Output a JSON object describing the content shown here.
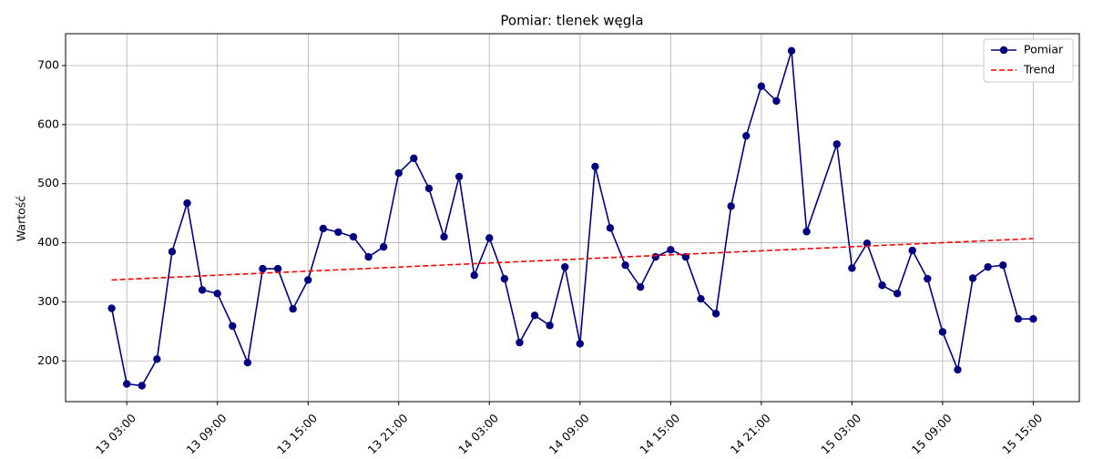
{
  "chart_data": {
    "type": "line",
    "title": "Pomiar: tlenek węgla",
    "ylabel": "Wartość",
    "xlim": [
      "12 22:57",
      "15 18:03"
    ],
    "xticks": [
      "13 03:00",
      "13 09:00",
      "13 15:00",
      "13 21:00",
      "14 03:00",
      "14 09:00",
      "14 15:00",
      "14 21:00",
      "15 03:00",
      "15 09:00",
      "15 15:00"
    ],
    "ylim": [
      131,
      754
    ],
    "yticks": [
      200,
      300,
      400,
      500,
      600,
      700
    ],
    "grid": true,
    "legend": "upper right",
    "series": [
      {
        "name": "Pomiar",
        "color": "#000080",
        "style": "solid",
        "marker": true,
        "x": [
          "13 02:00",
          "13 03:00",
          "13 04:00",
          "13 05:00",
          "13 06:00",
          "13 07:00",
          "13 08:00",
          "13 09:00",
          "13 10:00",
          "13 11:00",
          "13 12:00",
          "13 13:00",
          "13 14:00",
          "13 15:00",
          "13 16:00",
          "13 17:00",
          "13 18:00",
          "13 19:00",
          "13 20:00",
          "13 21:00",
          "13 22:00",
          "13 23:00",
          "14 00:00",
          "14 01:00",
          "14 02:00",
          "14 03:00",
          "14 04:00",
          "14 05:00",
          "14 06:00",
          "14 07:00",
          "14 08:00",
          "14 09:00",
          "14 10:00",
          "14 11:00",
          "14 12:00",
          "14 13:00",
          "14 14:00",
          "14 15:00",
          "14 16:00",
          "14 17:00",
          "14 18:00",
          "14 19:00",
          "14 20:00",
          "14 21:00",
          "14 22:00",
          "14 23:00",
          "15 00:00",
          "15 02:00",
          "15 03:00",
          "15 04:00",
          "15 05:00",
          "15 06:00",
          "15 07:00",
          "15 08:00",
          "15 09:00",
          "15 10:00",
          "15 11:00",
          "15 12:00",
          "15 13:00",
          "15 14:00",
          "15 15:00"
        ],
        "values": [
          289,
          161,
          158,
          203,
          385,
          467,
          320,
          314,
          259,
          197,
          356,
          356,
          288,
          337,
          424,
          418,
          410,
          376,
          393,
          518,
          543,
          492,
          410,
          512,
          345,
          408,
          339,
          231,
          277,
          260,
          359,
          229,
          529,
          425,
          362,
          325,
          376,
          388,
          376,
          305,
          280,
          462,
          581,
          665,
          640,
          725,
          419,
          567,
          357,
          399,
          328,
          314,
          387,
          339,
          249,
          185,
          340,
          359,
          362,
          271,
          271
        ]
      },
      {
        "name": "Trend",
        "color": "#ff0000",
        "style": "dashed",
        "marker": false,
        "x": [
          "13 02:00",
          "15 15:00"
        ],
        "values": [
          337,
          407
        ]
      }
    ]
  }
}
